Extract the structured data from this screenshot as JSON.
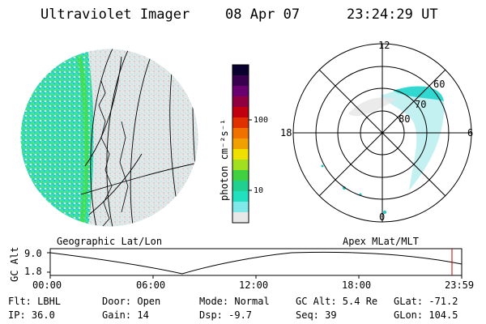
{
  "header": {
    "instrument": "Ultraviolet Imager",
    "date": "08 Apr 07",
    "time": "23:24:29 UT"
  },
  "colorbar": {
    "unit_label": "photon cm⁻²s⁻¹",
    "ticks": [
      "100",
      "10"
    ],
    "colors": [
      "#0a0030",
      "#3a0050",
      "#6a0070",
      "#900040",
      "#c00010",
      "#e03000",
      "#f07000",
      "#f0a000",
      "#f0e000",
      "#a0e020",
      "#40d040",
      "#20d090",
      "#20e0c0",
      "#80e8e8",
      "#e8e8e8"
    ]
  },
  "polar": {
    "mlt_labels": {
      "top": "12",
      "left": "18",
      "right": "6",
      "bottom": "0"
    },
    "lat_labels": [
      "60",
      "70",
      "80"
    ]
  },
  "panel_labels": {
    "left": "Geographic Lat/Lon",
    "right": "Apex MLat/MLT"
  },
  "altitude_plot": {
    "ylabel": "GC Alt",
    "yticks": [
      "9.0",
      "1.8"
    ],
    "xticks": [
      "00:00",
      "06:00",
      "12:00",
      "18:00",
      "23:59"
    ],
    "marker_color": "#c00000"
  },
  "info": {
    "flt": "Flt: LBHL",
    "ip": "IP: 36.0",
    "door": "Door: Open",
    "gain": "Gain: 14",
    "mode": "Mode: Normal",
    "dsp": "Dsp:   -9.7",
    "gcalt": "GC Alt: 5.4 Re",
    "seq": "Seq: 39",
    "glat": "GLat: -71.2",
    "glon": "GLon: 104.5"
  }
}
